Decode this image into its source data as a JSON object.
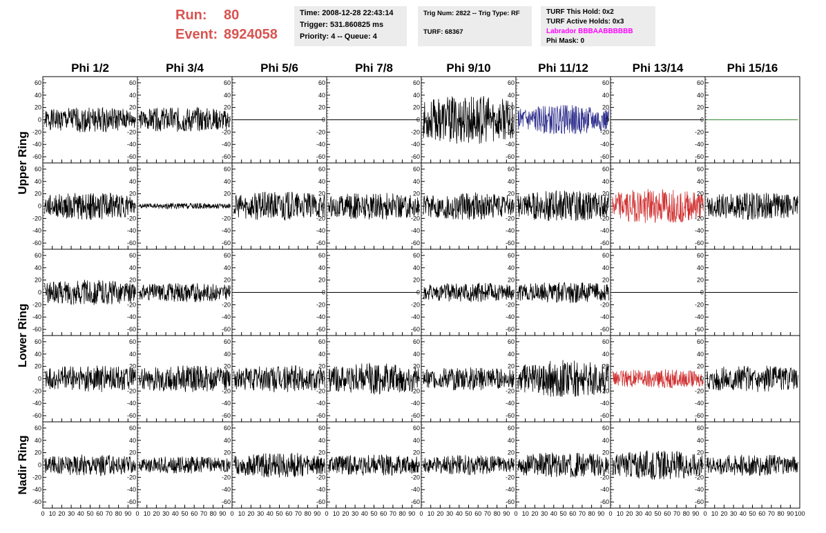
{
  "header": {
    "run_label": "Run:",
    "run_value": "80",
    "event_label": "Event:",
    "event_value": "8924058",
    "time": "Time: 2008-12-28 22:43:14",
    "trigger": "Trigger: 531.860825 ms",
    "priority": "Priority: 4 -- Queue: 4",
    "trig_num": "Trig Num: 2822 -- Trig Type: RF",
    "turf": "TURF: 68367",
    "turf_this_hold": "TURF This Hold: 0x2",
    "turf_active_holds": "TURF Active Holds: 0x3",
    "labrador": "Labrador BBBAABBBBBB",
    "phi_mask": "Phi Mask: 0"
  },
  "colors": {
    "black": "#000000",
    "blue": "#2c2c8c",
    "red": "#d03030",
    "green": "#2e8b2e",
    "header_red": "#d9534f",
    "magenta": "#ff00ff"
  },
  "chart_data": {
    "type": "line",
    "columns": [
      "Phi 1/2",
      "Phi 3/4",
      "Phi 5/6",
      "Phi 7/8",
      "Phi 9/10",
      "Phi 11/12",
      "Phi 13/14",
      "Phi 15/16"
    ],
    "ring_labels": [
      "Upper Ring",
      "Lower Ring",
      "Nadir Ring"
    ],
    "ylim": [
      -70,
      70
    ],
    "yticks": [
      -60,
      -40,
      -20,
      0,
      20,
      40,
      60
    ],
    "xlim": [
      0,
      100
    ],
    "xticks": [
      0,
      10,
      20,
      30,
      40,
      50,
      60,
      70,
      80,
      90,
      100
    ],
    "xtick_labels": [
      "0",
      "10",
      "20",
      "30",
      "40",
      "50",
      "60",
      "70",
      "80",
      "90",
      "100"
    ],
    "channel_amplitudes": [
      [
        13,
        13,
        0,
        0,
        25,
        15,
        0,
        0
      ],
      [
        14,
        3,
        15,
        14,
        14,
        16,
        18,
        14
      ],
      [
        13,
        10,
        0,
        0,
        10,
        11,
        0,
        0
      ],
      [
        14,
        14,
        14,
        16,
        12,
        19,
        10,
        14
      ],
      [
        11,
        9,
        13,
        11,
        10,
        13,
        15,
        11
      ]
    ],
    "trace_colors": [
      [
        "black",
        "black",
        "black",
        "black",
        "black",
        "blue",
        "black",
        "green"
      ],
      [
        "black",
        "black",
        "black",
        "black",
        "black",
        "black",
        "red",
        "black"
      ],
      [
        "black",
        "black",
        "black",
        "black",
        "black",
        "black",
        "black",
        "black"
      ],
      [
        "black",
        "black",
        "black",
        "black",
        "black",
        "black",
        "red",
        "black"
      ],
      [
        "black",
        "black",
        "black",
        "black",
        "black",
        "black",
        "black",
        "black"
      ]
    ]
  }
}
